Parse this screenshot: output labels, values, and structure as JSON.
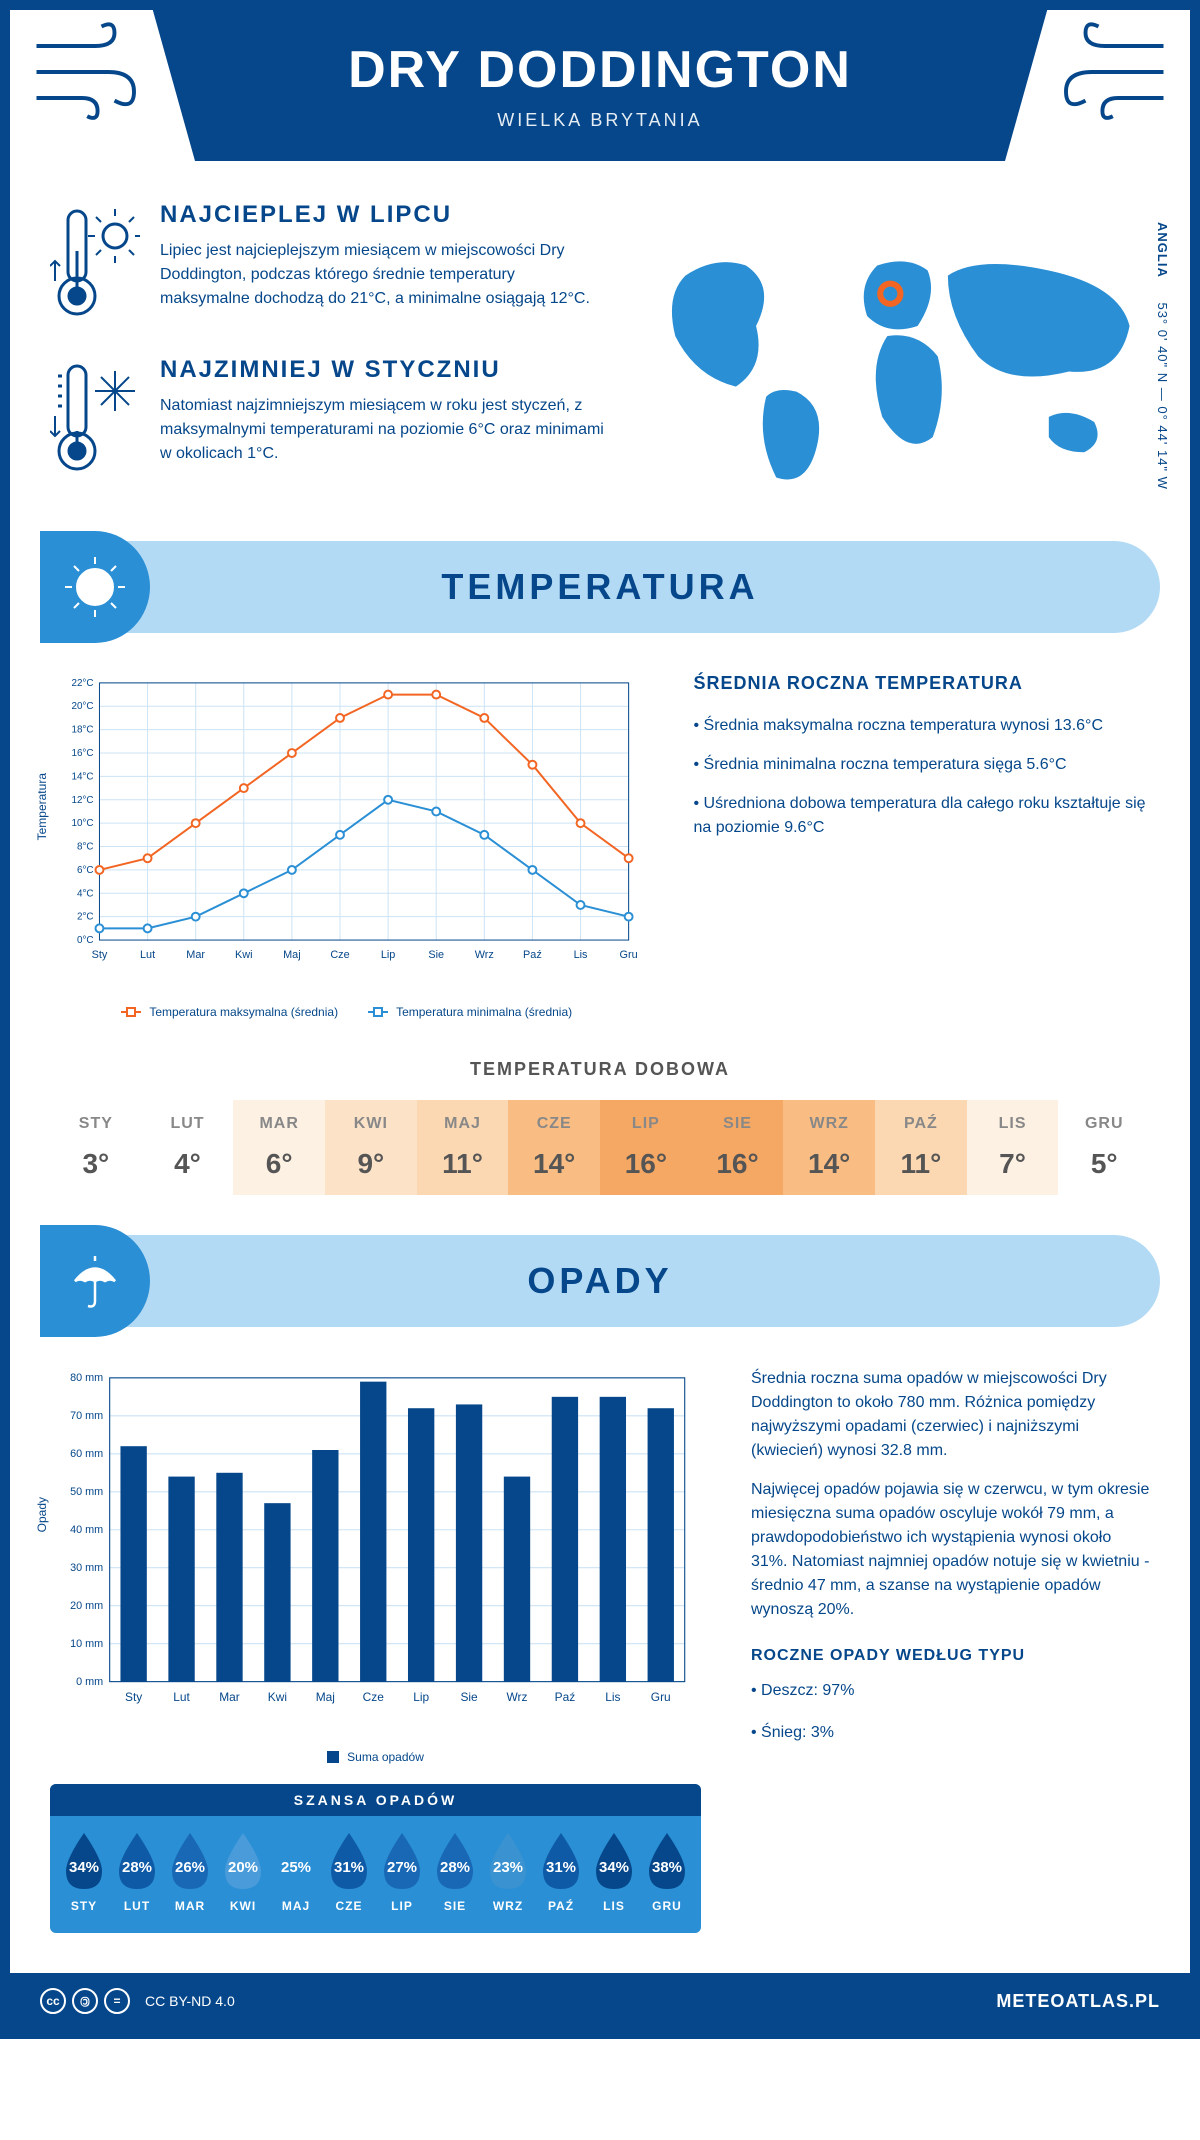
{
  "header": {
    "title": "DRY DODDINGTON",
    "subtitle": "WIELKA BRYTANIA"
  },
  "coords": {
    "lat": "53° 0' 40\" N",
    "lon": "0° 44' 14\" W",
    "region": "ANGLIA"
  },
  "info": {
    "hot": {
      "title": "NAJCIEPLEJ W LIPCU",
      "text": "Lipiec jest najcieplejszym miesiącem w miejscowości Dry Doddington, podczas którego średnie temperatury maksymalne dochodzą do 21°C, a minimalne osiągają 12°C."
    },
    "cold": {
      "title": "NAJZIMNIEJ W STYCZNIU",
      "text": "Natomiast najzimniejszym miesiącem w roku jest styczeń, z maksymalnymi temperaturami na poziomie 6°C oraz minimami w okolicach 1°C."
    }
  },
  "sections": {
    "temperature_title": "TEMPERATURA",
    "precipitation_title": "OPADY"
  },
  "temp_chart": {
    "type": "line",
    "months": [
      "Sty",
      "Lut",
      "Mar",
      "Kwi",
      "Maj",
      "Cze",
      "Lip",
      "Sie",
      "Wrz",
      "Paź",
      "Lis",
      "Gru"
    ],
    "max_series": [
      6,
      7,
      10,
      13,
      16,
      19,
      21,
      21,
      19,
      15,
      10,
      7
    ],
    "min_series": [
      1,
      1,
      2,
      4,
      6,
      9,
      12,
      11,
      9,
      6,
      3,
      2
    ],
    "max_color": "#f26522",
    "min_color": "#2a8fd5",
    "y_ticks": [
      0,
      2,
      4,
      6,
      8,
      10,
      12,
      14,
      16,
      18,
      20,
      22
    ],
    "y_label": "Temperatura",
    "y_unit": "°C",
    "legend_max": "Temperatura maksymalna (średnia)",
    "legend_min": "Temperatura minimalna (średnia)",
    "grid_color": "#cce3f5",
    "background": "#ffffff"
  },
  "temp_side": {
    "title": "ŚREDNIA ROCZNA TEMPERATURA",
    "bullets": [
      "Średnia maksymalna roczna temperatura wynosi 13.6°C",
      "Średnia minimalna roczna temperatura sięga 5.6°C",
      "Uśredniona dobowa temperatura dla całego roku kształtuje się na poziomie 9.6°C"
    ]
  },
  "daily_temp": {
    "title": "TEMPERATURA DOBOWA",
    "months": [
      "STY",
      "LUT",
      "MAR",
      "KWI",
      "MAJ",
      "CZE",
      "LIP",
      "SIE",
      "WRZ",
      "PAŹ",
      "LIS",
      "GRU"
    ],
    "values": [
      "3°",
      "4°",
      "6°",
      "9°",
      "11°",
      "14°",
      "16°",
      "16°",
      "14°",
      "11°",
      "7°",
      "5°"
    ],
    "cell_colors": [
      "#ffffff",
      "#ffffff",
      "#fdf1e3",
      "#fce3c8",
      "#fbd8b1",
      "#f9bd83",
      "#f4a864",
      "#f4a864",
      "#f9bd83",
      "#fbd8b1",
      "#fdf1e3",
      "#ffffff"
    ]
  },
  "precip_chart": {
    "type": "bar",
    "months": [
      "Sty",
      "Lut",
      "Mar",
      "Kwi",
      "Maj",
      "Cze",
      "Lip",
      "Sie",
      "Wrz",
      "Paź",
      "Lis",
      "Gru"
    ],
    "values_mm": [
      62,
      54,
      55,
      47,
      61,
      79,
      72,
      73,
      54,
      75,
      75,
      72
    ],
    "y_ticks": [
      0,
      10,
      20,
      30,
      40,
      50,
      60,
      70,
      80
    ],
    "y_label": "Opady",
    "y_unit": " mm",
    "bar_color": "#05478a",
    "grid_color": "#cce3f5",
    "legend": "Suma opadów"
  },
  "precip_side": {
    "para1": "Średnia roczna suma opadów w miejscowości Dry Doddington to około 780 mm. Różnica pomiędzy najwyższymi opadami (czerwiec) i najniższymi (kwiecień) wynosi 32.8 mm.",
    "para2": "Najwięcej opadów pojawia się w czerwcu, w tym okresie miesięczna suma opadów oscyluje wokół 79 mm, a prawdopodobieństwo ich wystąpienia wynosi około 31%. Natomiast najmniej opadów notuje się w kwietniu - średnio 47 mm, a szanse na wystąpienie opadów wynoszą 20%."
  },
  "rain_chance": {
    "title": "SZANSA OPADÓW",
    "months": [
      "STY",
      "LUT",
      "MAR",
      "KWI",
      "MAJ",
      "CZE",
      "LIP",
      "SIE",
      "WRZ",
      "PAŹ",
      "LIS",
      "GRU"
    ],
    "values": [
      "34%",
      "28%",
      "26%",
      "20%",
      "25%",
      "31%",
      "27%",
      "28%",
      "23%",
      "31%",
      "34%",
      "38%"
    ],
    "drop_colors": [
      "#05478a",
      "#0e5aa6",
      "#1968b6",
      "#4a9bd9",
      "#2a8fd5",
      "#0e5aa6",
      "#1968b6",
      "#1968b6",
      "#3a93d0",
      "#0e5aa6",
      "#05478a",
      "#05478a"
    ]
  },
  "precip_types": {
    "title": "ROCZNE OPADY WEDŁUG TYPU",
    "items": [
      "Deszcz: 97%",
      "Śnieg: 3%"
    ]
  },
  "footer": {
    "license": "CC BY-ND 4.0",
    "brand": "METEOATLAS.PL"
  }
}
